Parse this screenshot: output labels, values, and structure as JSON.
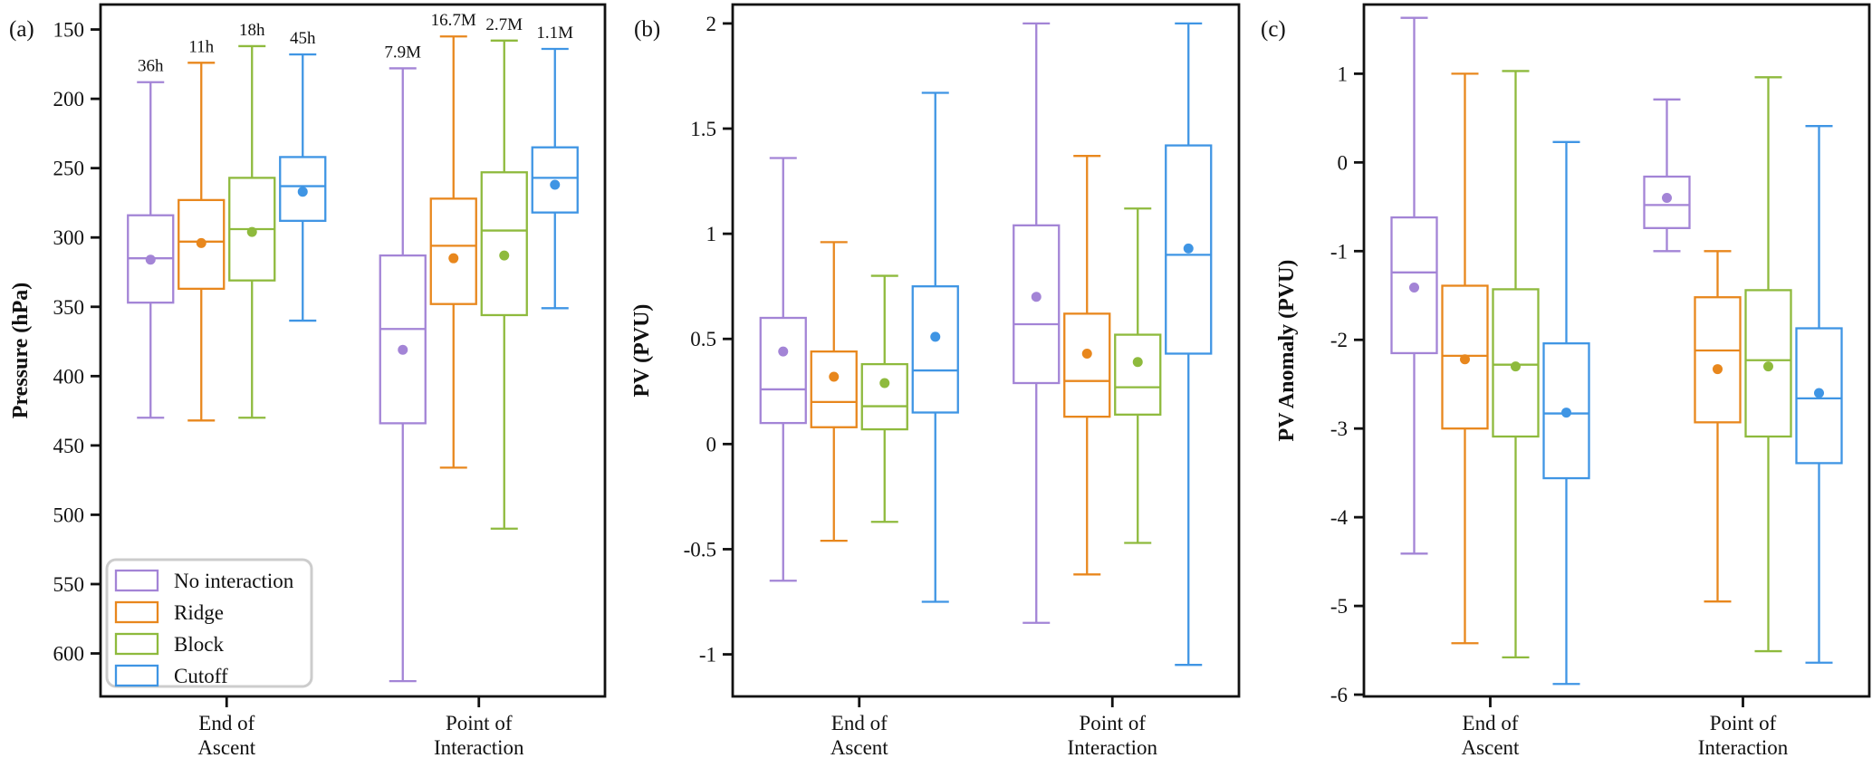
{
  "chart_data": {
    "type": "boxplot-grouped",
    "background": "#ffffff",
    "grid": false,
    "series": [
      {
        "name": "No interaction",
        "color": "#a384d6"
      },
      {
        "name": "Ridge",
        "color": "#e8871d"
      },
      {
        "name": "Block",
        "color": "#8eba3d"
      },
      {
        "name": "Cutoff",
        "color": "#3f95e4"
      }
    ],
    "categories": [
      [
        "End of",
        "Ascent"
      ],
      [
        "Point of",
        "Interaction"
      ]
    ],
    "legend": {
      "position": "lower left of panel (a)",
      "items": [
        "No interaction",
        "Ridge",
        "Block",
        "Cutoff"
      ]
    },
    "panels": [
      {
        "label": "(a)",
        "ylabel": "Pressure (hPa)",
        "axis_inverted": true,
        "ylim_top_to_bottom": [
          132,
          631
        ],
        "ytick_vals": [
          150,
          200,
          250,
          300,
          350,
          400,
          450,
          500,
          550,
          600
        ],
        "ytick_labels": [
          "150",
          "200",
          "250",
          "300",
          "350",
          "400",
          "450",
          "500",
          "550",
          "600"
        ],
        "annotations": [
          [
            "36h",
            "11h",
            "18h",
            "45h"
          ],
          [
            "7.9M",
            "16.7M",
            "2.7M",
            "1.1M"
          ]
        ],
        "groups": [
          {
            "category": "End of Ascent",
            "boxes": [
              {
                "series": "No interaction",
                "whisker_lo": 188,
                "q1": 284,
                "median": 315,
                "q3": 347,
                "whisker_hi": 430,
                "mean": 316
              },
              {
                "series": "Ridge",
                "whisker_lo": 174,
                "q1": 273,
                "median": 303,
                "q3": 337,
                "whisker_hi": 432,
                "mean": 304
              },
              {
                "series": "Block",
                "whisker_lo": 162,
                "q1": 257,
                "median": 294,
                "q3": 331,
                "whisker_hi": 430,
                "mean": 296
              },
              {
                "series": "Cutoff",
                "whisker_lo": 168,
                "q1": 242,
                "median": 263,
                "q3": 288,
                "whisker_hi": 360,
                "mean": 267
              }
            ]
          },
          {
            "category": "Point of Interaction",
            "boxes": [
              {
                "series": "No interaction",
                "whisker_lo": 178,
                "q1": 313,
                "median": 366,
                "q3": 434,
                "whisker_hi": 620,
                "mean": 381
              },
              {
                "series": "Ridge",
                "whisker_lo": 155,
                "q1": 272,
                "median": 306,
                "q3": 348,
                "whisker_hi": 466,
                "mean": 315
              },
              {
                "series": "Block",
                "whisker_lo": 158,
                "q1": 253,
                "median": 295,
                "q3": 356,
                "whisker_hi": 510,
                "mean": 313
              },
              {
                "series": "Cutoff",
                "whisker_lo": 164,
                "q1": 235,
                "median": 257,
                "q3": 282,
                "whisker_hi": 351,
                "mean": 262
              }
            ]
          }
        ]
      },
      {
        "label": "(b)",
        "ylabel": "PV (PVU)",
        "axis_inverted": false,
        "ylim_top_to_bottom": [
          2.09,
          -1.2
        ],
        "ytick_vals": [
          2,
          1.5,
          1,
          0.5,
          0,
          -0.5,
          -1
        ],
        "ytick_labels": [
          "2",
          "1.5",
          "1",
          "0.5",
          "0",
          "-0.5",
          "-1"
        ],
        "annotations": [
          [],
          []
        ],
        "groups": [
          {
            "category": "End of Ascent",
            "boxes": [
              {
                "series": "No interaction",
                "whisker_lo": -0.65,
                "q1": 0.1,
                "median": 0.26,
                "q3": 0.6,
                "whisker_hi": 1.36,
                "mean": 0.44
              },
              {
                "series": "Ridge",
                "whisker_lo": -0.46,
                "q1": 0.08,
                "median": 0.2,
                "q3": 0.44,
                "whisker_hi": 0.96,
                "mean": 0.32
              },
              {
                "series": "Block",
                "whisker_lo": -0.37,
                "q1": 0.07,
                "median": 0.18,
                "q3": 0.38,
                "whisker_hi": 0.8,
                "mean": 0.29
              },
              {
                "series": "Cutoff",
                "whisker_lo": -0.75,
                "q1": 0.15,
                "median": 0.35,
                "q3": 0.75,
                "whisker_hi": 1.67,
                "mean": 0.51
              }
            ]
          },
          {
            "category": "Point of Interaction",
            "boxes": [
              {
                "series": "No interaction",
                "whisker_lo": -0.85,
                "q1": 0.29,
                "median": 0.57,
                "q3": 1.04,
                "whisker_hi": 2.0,
                "mean": 0.7
              },
              {
                "series": "Ridge",
                "whisker_lo": -0.62,
                "q1": 0.13,
                "median": 0.3,
                "q3": 0.62,
                "whisker_hi": 1.37,
                "mean": 0.43
              },
              {
                "series": "Block",
                "whisker_lo": -0.47,
                "q1": 0.14,
                "median": 0.27,
                "q3": 0.52,
                "whisker_hi": 1.12,
                "mean": 0.39
              },
              {
                "series": "Cutoff",
                "whisker_lo": -1.05,
                "q1": 0.43,
                "median": 0.9,
                "q3": 1.42,
                "whisker_hi": 2.0,
                "mean": 0.93
              }
            ]
          }
        ]
      },
      {
        "label": "(c)",
        "ylabel": "PV Anomaly (PVU)",
        "axis_inverted": false,
        "ylim_top_to_bottom": [
          1.78,
          -6.02
        ],
        "ytick_vals": [
          1,
          0,
          -1,
          -2,
          -3,
          -4,
          -5,
          -6
        ],
        "ytick_labels": [
          "1",
          "0",
          "-1",
          "-2",
          "-3",
          "-4",
          "-5",
          "-6"
        ],
        "annotations": [
          [],
          []
        ],
        "groups": [
          {
            "category": "End of Ascent",
            "boxes": [
              {
                "series": "No interaction",
                "whisker_lo": -4.41,
                "q1": -2.15,
                "median": -1.24,
                "q3": -0.62,
                "whisker_hi": 1.63,
                "mean": -1.41
              },
              {
                "series": "Ridge",
                "whisker_lo": -5.42,
                "q1": -3.0,
                "median": -2.18,
                "q3": -1.39,
                "whisker_hi": 1.0,
                "mean": -2.22
              },
              {
                "series": "Block",
                "whisker_lo": -5.58,
                "q1": -3.09,
                "median": -2.28,
                "q3": -1.43,
                "whisker_hi": 1.03,
                "mean": -2.3
              },
              {
                "series": "Cutoff",
                "whisker_lo": -5.88,
                "q1": -3.56,
                "median": -2.83,
                "q3": -2.04,
                "whisker_hi": 0.23,
                "mean": -2.82
              }
            ]
          },
          {
            "category": "Point of Interaction",
            "boxes": [
              {
                "series": "No interaction",
                "whisker_lo": -1.0,
                "q1": -0.74,
                "median": -0.48,
                "q3": -0.16,
                "whisker_hi": 0.71,
                "mean": -0.4
              },
              {
                "series": "Ridge",
                "whisker_lo": -4.95,
                "q1": -2.93,
                "median": -2.12,
                "q3": -1.52,
                "whisker_hi": -1.0,
                "mean": -2.33
              },
              {
                "series": "Block",
                "whisker_lo": -5.51,
                "q1": -3.09,
                "median": -2.23,
                "q3": -1.44,
                "whisker_hi": 0.96,
                "mean": -2.3
              },
              {
                "series": "Cutoff",
                "whisker_lo": -5.64,
                "q1": -3.39,
                "median": -2.66,
                "q3": -1.87,
                "whisker_hi": 0.41,
                "mean": -2.6
              }
            ]
          }
        ]
      }
    ]
  }
}
